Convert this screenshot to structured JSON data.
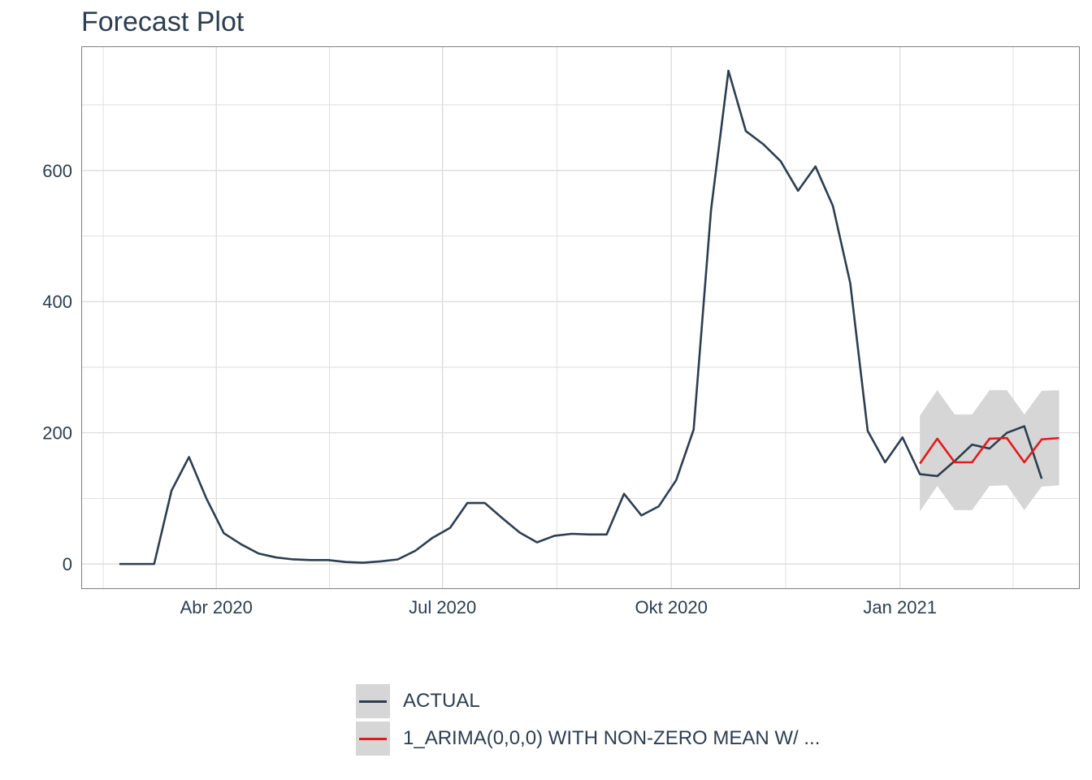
{
  "title": "Forecast Plot",
  "chart_data": {
    "type": "line",
    "title": "Forecast Plot",
    "xlabel": "",
    "ylabel": "",
    "x_ticks": [
      {
        "date": "2020-04-01",
        "label": "Abr 2020"
      },
      {
        "date": "2020-07-01",
        "label": "Jul 2020"
      },
      {
        "date": "2020-10-01",
        "label": "Okt 2020"
      },
      {
        "date": "2021-01-01",
        "label": "Jan 2021"
      }
    ],
    "y_ticks": [
      0,
      200,
      400,
      600
    ],
    "xlim": [
      "2020-02-07",
      "2021-03-14"
    ],
    "ylim": [
      -37,
      788
    ],
    "grid": true,
    "legend_position": "bottom",
    "series": [
      {
        "name": "ACTUAL",
        "color": "#2c3e50",
        "x": [
          "2020-02-22",
          "2020-02-29",
          "2020-03-07",
          "2020-03-14",
          "2020-03-21",
          "2020-03-28",
          "2020-04-04",
          "2020-04-11",
          "2020-04-18",
          "2020-04-25",
          "2020-05-02",
          "2020-05-09",
          "2020-05-16",
          "2020-05-23",
          "2020-05-30",
          "2020-06-06",
          "2020-06-13",
          "2020-06-20",
          "2020-06-27",
          "2020-07-04",
          "2020-07-11",
          "2020-07-18",
          "2020-07-25",
          "2020-08-01",
          "2020-08-08",
          "2020-08-15",
          "2020-08-22",
          "2020-08-29",
          "2020-09-05",
          "2020-09-12",
          "2020-09-19",
          "2020-09-26",
          "2020-10-03",
          "2020-10-10",
          "2020-10-17",
          "2020-10-24",
          "2020-10-31",
          "2020-11-07",
          "2020-11-14",
          "2020-11-21",
          "2020-11-28",
          "2020-12-05",
          "2020-12-12",
          "2020-12-19",
          "2020-12-26",
          "2021-01-02",
          "2021-01-09",
          "2021-01-16",
          "2021-01-23",
          "2021-01-30",
          "2021-02-06",
          "2021-02-13",
          "2021-02-20",
          "2021-02-27"
        ],
        "values": [
          0,
          0,
          0,
          112,
          163,
          100,
          47,
          30,
          16,
          10,
          7,
          6,
          6,
          3,
          2,
          4,
          7,
          20,
          40,
          55,
          93,
          93,
          70,
          48,
          33,
          43,
          46,
          45,
          45,
          107,
          74,
          88,
          128,
          205,
          540,
          752,
          660,
          640,
          614,
          569,
          606,
          546,
          428,
          203,
          155,
          193,
          137,
          134,
          157,
          182,
          176,
          200,
          210,
          130
        ]
      },
      {
        "name": "1_ARIMA(0,0,0) WITH NON-ZERO MEAN W/ ...",
        "color": "#e31a1c",
        "x": [
          "2021-01-09",
          "2021-01-16",
          "2021-01-23",
          "2021-01-30",
          "2021-02-06",
          "2021-02-13",
          "2021-02-20",
          "2021-02-27",
          "2021-03-06"
        ],
        "values": [
          153,
          191,
          155,
          155,
          191,
          192,
          155,
          190,
          192
        ],
        "conf_lo": [
          80,
          119,
          82,
          82,
          119,
          120,
          82,
          118,
          120
        ],
        "conf_hi": [
          226,
          265,
          228,
          228,
          265,
          265,
          228,
          264,
          265
        ]
      }
    ]
  },
  "legend": {
    "items": [
      {
        "label": "ACTUAL",
        "color": "#2c3e50"
      },
      {
        "label": "1_ARIMA(0,0,0) WITH NON-ZERO MEAN W/ ...",
        "color": "#e31a1c"
      }
    ]
  },
  "colors": {
    "text": "#2c3e50",
    "grid": "#d9d9d9",
    "ribbon": "#d6d6d6",
    "panel_border": "#7f7f7f"
  }
}
